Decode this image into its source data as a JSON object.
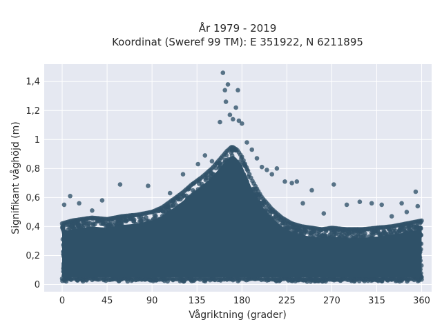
{
  "chart_data": {
    "type": "scatter",
    "title_line1": "År 1979 - 2019",
    "title_line2": "Koordinat (Sweref 99 TM): E 351922, N 6211895",
    "xlabel": "Vågriktning (grader)",
    "ylabel": "Signifikant våghöjd (m)",
    "xlim": [
      -18,
      370
    ],
    "ylim": [
      -0.05,
      1.52
    ],
    "xticks": [
      0,
      45,
      90,
      135,
      180,
      225,
      270,
      315,
      360
    ],
    "xtick_labels": [
      "0",
      "45",
      "90",
      "135",
      "180",
      "225",
      "270",
      "315",
      "360"
    ],
    "yticks": [
      0,
      0.2,
      0.4,
      0.6,
      0.8,
      1.0,
      1.2,
      1.4
    ],
    "ytick_labels": [
      "0",
      "0,2",
      "0,4",
      "0,6",
      "0,8",
      "1",
      "1,2",
      "1,4"
    ],
    "grid": true,
    "marker_color": "#2f5168",
    "plot_background": "#e5e8f1",
    "envelope_upper": {
      "x": [
        0,
        10,
        20,
        30,
        45,
        60,
        75,
        90,
        100,
        110,
        120,
        130,
        140,
        150,
        155,
        160,
        165,
        170,
        175,
        180,
        185,
        190,
        200,
        210,
        220,
        230,
        240,
        250,
        260,
        270,
        285,
        300,
        315,
        330,
        345,
        360
      ],
      "y": [
        0.42,
        0.44,
        0.45,
        0.46,
        0.45,
        0.47,
        0.48,
        0.5,
        0.53,
        0.58,
        0.63,
        0.69,
        0.74,
        0.8,
        0.84,
        0.88,
        0.92,
        0.95,
        0.93,
        0.88,
        0.8,
        0.72,
        0.6,
        0.52,
        0.46,
        0.42,
        0.4,
        0.39,
        0.38,
        0.39,
        0.38,
        0.38,
        0.39,
        0.4,
        0.42,
        0.44
      ]
    },
    "points": [
      {
        "x": 161,
        "y": 1.46
      },
      {
        "x": 166,
        "y": 1.38
      },
      {
        "x": 163,
        "y": 1.34
      },
      {
        "x": 176,
        "y": 1.34
      },
      {
        "x": 174,
        "y": 1.22
      },
      {
        "x": 164,
        "y": 1.26
      },
      {
        "x": 168,
        "y": 1.17
      },
      {
        "x": 171,
        "y": 1.14
      },
      {
        "x": 180,
        "y": 1.11
      },
      {
        "x": 177,
        "y": 1.13
      },
      {
        "x": 158,
        "y": 1.12
      },
      {
        "x": 185,
        "y": 0.98
      },
      {
        "x": 190,
        "y": 0.93
      },
      {
        "x": 195,
        "y": 0.87
      },
      {
        "x": 200,
        "y": 0.81
      },
      {
        "x": 205,
        "y": 0.79
      },
      {
        "x": 210,
        "y": 0.76
      },
      {
        "x": 230,
        "y": 0.7
      },
      {
        "x": 235,
        "y": 0.71
      },
      {
        "x": 250,
        "y": 0.65
      },
      {
        "x": 272,
        "y": 0.69
      },
      {
        "x": 241,
        "y": 0.56
      },
      {
        "x": 285,
        "y": 0.55
      },
      {
        "x": 298,
        "y": 0.57
      },
      {
        "x": 310,
        "y": 0.56
      },
      {
        "x": 320,
        "y": 0.55
      },
      {
        "x": 340,
        "y": 0.56
      },
      {
        "x": 354,
        "y": 0.64
      },
      {
        "x": 356,
        "y": 0.54
      },
      {
        "x": 8,
        "y": 0.61
      },
      {
        "x": 2,
        "y": 0.55
      },
      {
        "x": 17,
        "y": 0.56
      },
      {
        "x": 30,
        "y": 0.51
      },
      {
        "x": 40,
        "y": 0.58
      },
      {
        "x": 58,
        "y": 0.69
      },
      {
        "x": 86,
        "y": 0.68
      },
      {
        "x": 108,
        "y": 0.63
      },
      {
        "x": 121,
        "y": 0.76
      },
      {
        "x": 136,
        "y": 0.83
      },
      {
        "x": 143,
        "y": 0.89
      },
      {
        "x": 150,
        "y": 0.85
      },
      {
        "x": 215,
        "y": 0.8
      },
      {
        "x": 223,
        "y": 0.71
      },
      {
        "x": 262,
        "y": 0.49
      },
      {
        "x": 330,
        "y": 0.47
      },
      {
        "x": 345,
        "y": 0.5
      }
    ]
  }
}
